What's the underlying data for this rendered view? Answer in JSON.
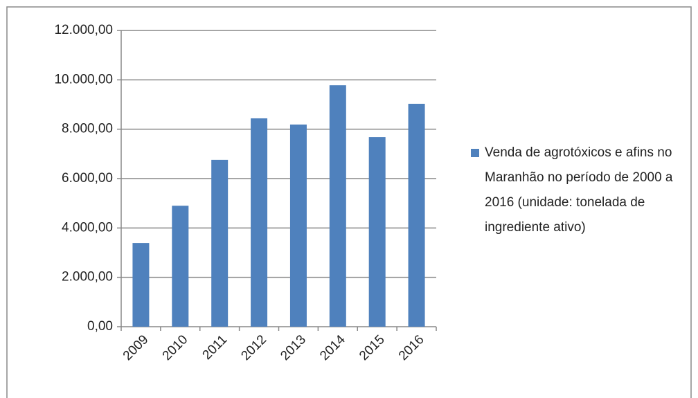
{
  "chart_data": {
    "type": "bar",
    "categories": [
      "2009",
      "2010",
      "2011",
      "2012",
      "2013",
      "2014",
      "2015",
      "2016"
    ],
    "series": [
      {
        "name": "Venda de agrotóxicos e afins no Maranhão no período de 2000 a 2016 (unidade: tonelada de ingrediente ativo)",
        "color": "#4f81bd",
        "values": [
          3390,
          4900,
          6760,
          8440,
          8190,
          9780,
          7680,
          9030
        ]
      }
    ],
    "ylim": [
      0,
      12000
    ],
    "yticks": [
      {
        "value": 0,
        "label": "0,00"
      },
      {
        "value": 2000,
        "label": "2.000,00"
      },
      {
        "value": 4000,
        "label": "4.000,00"
      },
      {
        "value": 6000,
        "label": "6.000,00"
      },
      {
        "value": 8000,
        "label": "8.000,00"
      },
      {
        "value": 10000,
        "label": "10.000,00"
      },
      {
        "value": 12000,
        "label": "12.000,00"
      }
    ],
    "grid": true,
    "legend": "right"
  }
}
